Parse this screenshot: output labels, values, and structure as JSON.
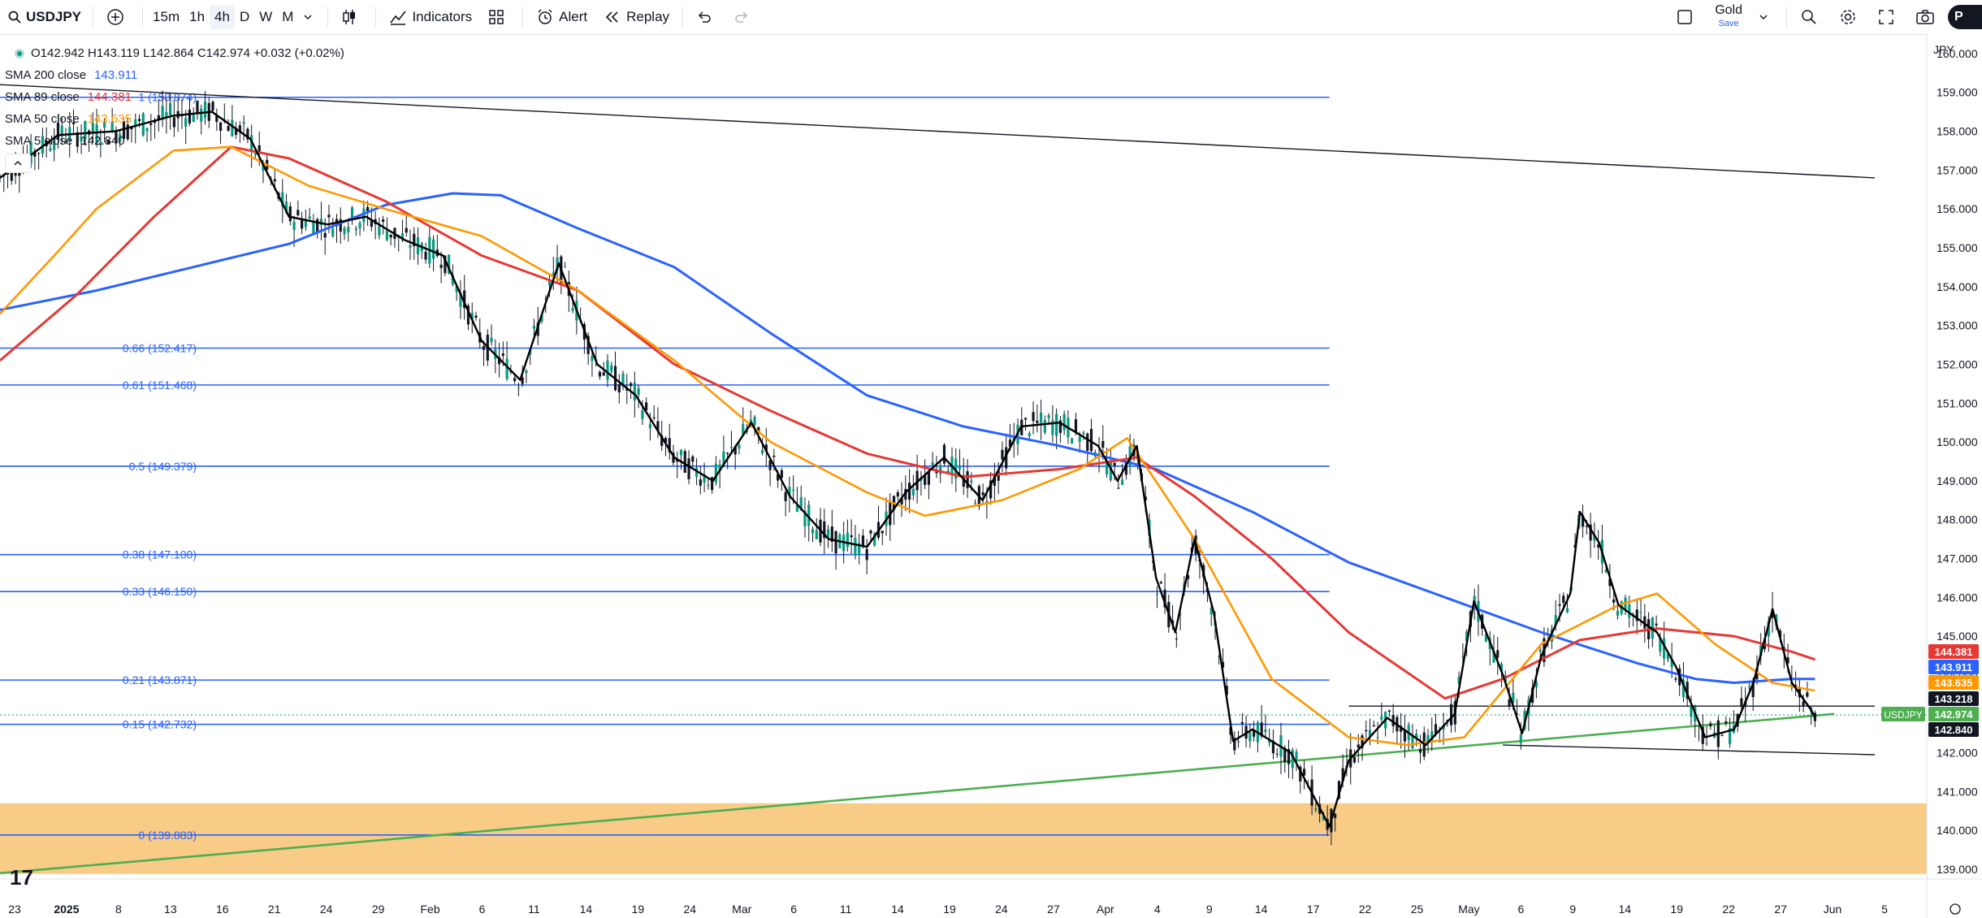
{
  "toolbar": {
    "symbol": "USDJPY",
    "intervals": [
      "15m",
      "1h",
      "4h",
      "D",
      "W",
      "M"
    ],
    "active_interval": "4h",
    "indicators_label": "Indicators",
    "alert_label": "Alert",
    "replay_label": "Replay",
    "layout_name": "Gold",
    "save_label": "Save",
    "profile_initial": "P"
  },
  "legend": {
    "ohlc": "O142.942  H143.119  L142.864  C142.974  +0.032 (+0.02%)",
    "sma200_label": "SMA 200 close",
    "sma200_value": "143.911",
    "sma89_label": "SMA 89 close",
    "sma89_value": "144.381",
    "sma50_label": "SMA 50 close",
    "sma50_value": "143.635",
    "sma5_label": "SMA 5 close",
    "sma5_value": "142.840"
  },
  "currency": "JPY",
  "price_axis": [
    "160.000",
    "159.000",
    "158.000",
    "157.000",
    "156.000",
    "155.000",
    "154.000",
    "153.000",
    "152.000",
    "151.000",
    "150.000",
    "149.000",
    "148.000",
    "147.000",
    "146.000",
    "145.000",
    "144.000",
    "143.000",
    "142.000",
    "141.000",
    "140.000",
    "139.000"
  ],
  "price_tags": {
    "sma89": "144.381",
    "sma200": "143.911",
    "sma50": "143.635",
    "level": "143.218",
    "close_symbol": "USDJPY",
    "close": "142.974",
    "sma5": "142.840"
  },
  "fib_levels": [
    {
      "label": "1 (158.874)",
      "price": 158.874
    },
    {
      "label": "0.66 (152.417)",
      "price": 152.417
    },
    {
      "label": "0.61 (151.468)",
      "price": 151.468
    },
    {
      "label": "0.5 (149.379)",
      "price": 149.379
    },
    {
      "label": "0.38 (147.100)",
      "price": 147.1
    },
    {
      "label": "0.33 (146.150)",
      "price": 146.15
    },
    {
      "label": "0.21 (143.871)",
      "price": 143.871
    },
    {
      "label": "0.15 (142.732)",
      "price": 142.732
    },
    {
      "label": "0 (139.883)",
      "price": 139.883
    }
  ],
  "time_axis": [
    {
      "label": "23",
      "bold": false
    },
    {
      "label": "2025",
      "bold": true
    },
    {
      "label": "8",
      "bold": false
    },
    {
      "label": "13",
      "bold": false
    },
    {
      "label": "16",
      "bold": false
    },
    {
      "label": "21",
      "bold": false
    },
    {
      "label": "24",
      "bold": false
    },
    {
      "label": "29",
      "bold": false
    },
    {
      "label": "Feb",
      "bold": false
    },
    {
      "label": "6",
      "bold": false
    },
    {
      "label": "11",
      "bold": false
    },
    {
      "label": "14",
      "bold": false
    },
    {
      "label": "19",
      "bold": false
    },
    {
      "label": "24",
      "bold": false
    },
    {
      "label": "Mar",
      "bold": false
    },
    {
      "label": "6",
      "bold": false
    },
    {
      "label": "11",
      "bold": false
    },
    {
      "label": "14",
      "bold": false
    },
    {
      "label": "19",
      "bold": false
    },
    {
      "label": "24",
      "bold": false
    },
    {
      "label": "27",
      "bold": false
    },
    {
      "label": "Apr",
      "bold": false
    },
    {
      "label": "4",
      "bold": false
    },
    {
      "label": "9",
      "bold": false
    },
    {
      "label": "14",
      "bold": false
    },
    {
      "label": "17",
      "bold": false
    },
    {
      "label": "22",
      "bold": false
    },
    {
      "label": "25",
      "bold": false
    },
    {
      "label": "May",
      "bold": false
    },
    {
      "label": "6",
      "bold": false
    },
    {
      "label": "9",
      "bold": false
    },
    {
      "label": "14",
      "bold": false
    },
    {
      "label": "19",
      "bold": false
    },
    {
      "label": "22",
      "bold": false
    },
    {
      "label": "27",
      "bold": false
    },
    {
      "label": "Jun",
      "bold": false
    },
    {
      "label": "5",
      "bold": false
    }
  ],
  "colors": {
    "sma200": "#2962ff",
    "sma89": "#e53935",
    "sma50": "#ff9800",
    "sma5": "#000000",
    "fib": "#2962ff",
    "zone": "#f7c67a",
    "trend_green": "#4caf50",
    "up": "#089981",
    "down": "#131722"
  },
  "chart_data": {
    "type": "candlestick",
    "symbol": "USDJPY",
    "timeframe": "4h",
    "y_range": [
      138.75,
      160.5
    ],
    "zone": [
      138.88,
      140.7
    ],
    "sma200": [
      [
        0,
        153.4
      ],
      [
        0.05,
        153.9
      ],
      [
        0.1,
        154.5
      ],
      [
        0.15,
        155.1
      ],
      [
        0.2,
        156.1
      ],
      [
        0.235,
        156.4
      ],
      [
        0.26,
        156.35
      ],
      [
        0.3,
        155.5
      ],
      [
        0.35,
        154.5
      ],
      [
        0.4,
        152.8
      ],
      [
        0.45,
        151.2
      ],
      [
        0.5,
        150.4
      ],
      [
        0.55,
        149.9
      ],
      [
        0.6,
        149.3
      ],
      [
        0.65,
        148.2
      ],
      [
        0.7,
        146.9
      ],
      [
        0.75,
        146.0
      ],
      [
        0.8,
        145.1
      ],
      [
        0.85,
        144.3
      ],
      [
        0.88,
        143.9
      ],
      [
        0.9,
        143.8
      ],
      [
        0.93,
        143.9
      ],
      [
        0.942,
        143.9
      ]
    ],
    "sma89": [
      [
        0,
        152.1
      ],
      [
        0.04,
        153.8
      ],
      [
        0.08,
        155.8
      ],
      [
        0.12,
        157.6
      ],
      [
        0.15,
        157.3
      ],
      [
        0.2,
        156.2
      ],
      [
        0.25,
        154.8
      ],
      [
        0.3,
        153.9
      ],
      [
        0.35,
        152.0
      ],
      [
        0.4,
        150.8
      ],
      [
        0.45,
        149.7
      ],
      [
        0.5,
        149.1
      ],
      [
        0.55,
        149.3
      ],
      [
        0.59,
        149.6
      ],
      [
        0.62,
        148.6
      ],
      [
        0.66,
        147.0
      ],
      [
        0.7,
        145.1
      ],
      [
        0.75,
        143.4
      ],
      [
        0.78,
        143.9
      ],
      [
        0.82,
        144.9
      ],
      [
        0.86,
        145.2
      ],
      [
        0.9,
        145.0
      ],
      [
        0.93,
        144.6
      ],
      [
        0.942,
        144.4
      ]
    ],
    "sma50": [
      [
        0,
        153.3
      ],
      [
        0.03,
        154.9
      ],
      [
        0.05,
        156.0
      ],
      [
        0.09,
        157.5
      ],
      [
        0.12,
        157.6
      ],
      [
        0.16,
        156.6
      ],
      [
        0.2,
        156.0
      ],
      [
        0.25,
        155.3
      ],
      [
        0.3,
        153.9
      ],
      [
        0.35,
        152.1
      ],
      [
        0.4,
        150.0
      ],
      [
        0.45,
        148.7
      ],
      [
        0.48,
        148.1
      ],
      [
        0.52,
        148.5
      ],
      [
        0.56,
        149.3
      ],
      [
        0.585,
        150.1
      ],
      [
        0.62,
        147.5
      ],
      [
        0.66,
        143.9
      ],
      [
        0.7,
        142.4
      ],
      [
        0.73,
        142.2
      ],
      [
        0.76,
        142.4
      ],
      [
        0.8,
        144.8
      ],
      [
        0.84,
        145.8
      ],
      [
        0.86,
        146.1
      ],
      [
        0.89,
        144.8
      ],
      [
        0.92,
        143.8
      ],
      [
        0.942,
        143.6
      ]
    ],
    "sma5_close": [
      [
        0,
        156.8
      ],
      [
        0.03,
        157.9
      ],
      [
        0.06,
        158.0
      ],
      [
        0.09,
        158.4
      ],
      [
        0.11,
        158.5
      ],
      [
        0.13,
        157.8
      ],
      [
        0.15,
        155.8
      ],
      [
        0.17,
        155.6
      ],
      [
        0.19,
        155.8
      ],
      [
        0.21,
        155.2
      ],
      [
        0.23,
        154.8
      ],
      [
        0.25,
        152.6
      ],
      [
        0.27,
        151.6
      ],
      [
        0.29,
        154.6
      ],
      [
        0.31,
        152.0
      ],
      [
        0.33,
        151.2
      ],
      [
        0.35,
        149.6
      ],
      [
        0.37,
        149.0
      ],
      [
        0.39,
        150.5
      ],
      [
        0.41,
        148.6
      ],
      [
        0.43,
        147.5
      ],
      [
        0.45,
        147.3
      ],
      [
        0.47,
        148.7
      ],
      [
        0.49,
        149.6
      ],
      [
        0.51,
        148.5
      ],
      [
        0.53,
        150.4
      ],
      [
        0.55,
        150.5
      ],
      [
        0.57,
        149.9
      ],
      [
        0.58,
        149.0
      ],
      [
        0.59,
        149.9
      ],
      [
        0.6,
        146.5
      ],
      [
        0.61,
        145.1
      ],
      [
        0.62,
        147.5
      ],
      [
        0.63,
        145.6
      ],
      [
        0.64,
        142.3
      ],
      [
        0.65,
        142.6
      ],
      [
        0.67,
        142.0
      ],
      [
        0.69,
        140.1
      ],
      [
        0.7,
        141.8
      ],
      [
        0.72,
        142.9
      ],
      [
        0.74,
        142.2
      ],
      [
        0.755,
        143.0
      ],
      [
        0.765,
        145.9
      ],
      [
        0.78,
        144.0
      ],
      [
        0.79,
        142.5
      ],
      [
        0.8,
        144.5
      ],
      [
        0.815,
        146.1
      ],
      [
        0.82,
        148.2
      ],
      [
        0.83,
        147.4
      ],
      [
        0.84,
        145.8
      ],
      [
        0.86,
        145.1
      ],
      [
        0.87,
        144.2
      ],
      [
        0.885,
        142.4
      ],
      [
        0.9,
        142.6
      ],
      [
        0.91,
        143.8
      ],
      [
        0.92,
        145.7
      ],
      [
        0.93,
        143.8
      ],
      [
        0.94,
        143.1
      ],
      [
        0.942,
        142.9
      ]
    ],
    "trendlines": [
      {
        "from": [
          0,
          159.2
        ],
        "to": [
          0.973,
          156.8
        ],
        "color": "#131722"
      },
      {
        "from": [
          0,
          138.9
        ],
        "to": [
          0.952,
          143.0
        ],
        "color": "#4caf50"
      },
      {
        "from": [
          0.78,
          142.2
        ],
        "to": [
          0.973,
          141.95
        ],
        "color": "#131722"
      },
      {
        "from": [
          0.7,
          143.2
        ],
        "to": [
          0.973,
          143.2
        ],
        "color": "#131722"
      }
    ],
    "fib_range_x": [
      0,
      0.69
    ]
  }
}
